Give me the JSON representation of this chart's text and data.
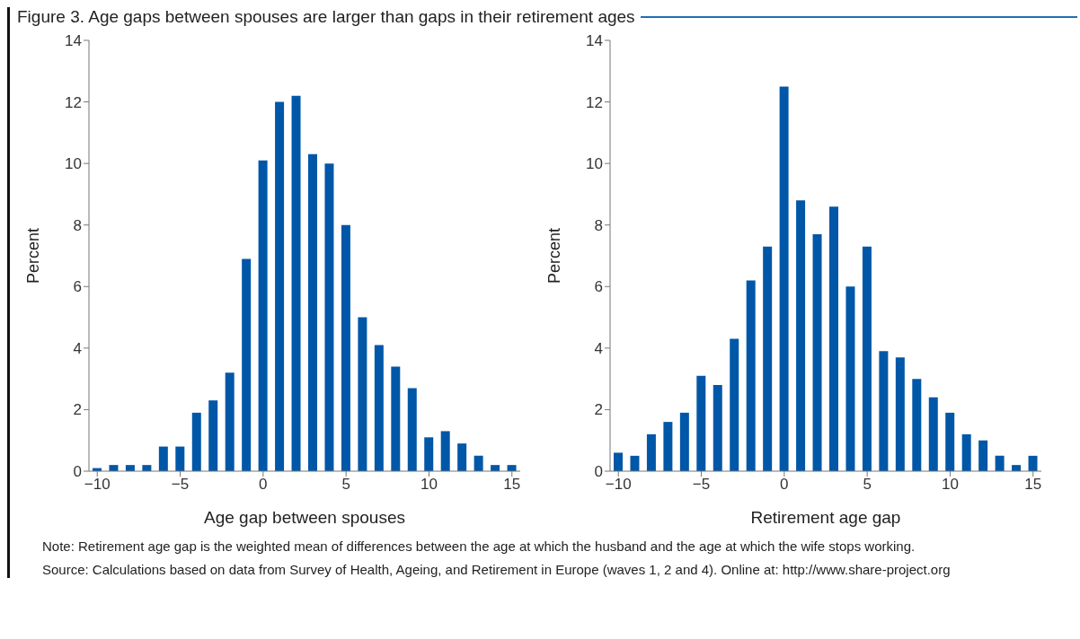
{
  "chart_data": [
    {
      "type": "bar",
      "title": "Figure 3. Age gaps between spouses are larger than gaps in their retirement ages",
      "xlabel": "Age gap between spouses",
      "ylabel": "Percent",
      "x": [
        -10,
        -9,
        -8,
        -7,
        -6,
        -5,
        -4,
        -3,
        -2,
        -1,
        0,
        1,
        2,
        3,
        4,
        5,
        6,
        7,
        8,
        9,
        10,
        11,
        12,
        13,
        14,
        15
      ],
      "values": [
        0.1,
        0.2,
        0.2,
        0.2,
        0.8,
        0.8,
        1.9,
        2.3,
        3.2,
        6.9,
        10.1,
        12.0,
        12.2,
        10.3,
        10.0,
        8.0,
        5.0,
        4.1,
        3.4,
        2.7,
        1.1,
        1.3,
        0.9,
        0.5,
        0.2,
        0.2
      ],
      "color": "#0057a8",
      "xlim": [
        -10.5,
        15.5
      ],
      "xticks": [
        -10,
        -5,
        0,
        5,
        10,
        15
      ],
      "ylim": [
        0,
        14
      ],
      "yticks": [
        0,
        2,
        4,
        6,
        8,
        10,
        12,
        14
      ]
    },
    {
      "type": "bar",
      "xlabel": "Retirement age gap",
      "ylabel": "Percent",
      "x": [
        -10,
        -9,
        -8,
        -7,
        -6,
        -5,
        -4,
        -3,
        -2,
        -1,
        0,
        1,
        2,
        3,
        4,
        5,
        6,
        7,
        8,
        9,
        10,
        11,
        12,
        13,
        14,
        15
      ],
      "values": [
        0.6,
        0.5,
        1.2,
        1.6,
        1.9,
        3.1,
        2.8,
        4.3,
        6.2,
        7.3,
        12.5,
        8.8,
        7.7,
        8.6,
        6.0,
        7.3,
        3.9,
        3.7,
        3.0,
        2.4,
        1.9,
        1.2,
        1.0,
        0.5,
        0.2,
        0.5
      ],
      "color": "#0057a8",
      "xlim": [
        -10.5,
        15.5
      ],
      "xticks": [
        -10,
        -5,
        0,
        5,
        10,
        15
      ],
      "ylim": [
        0,
        14
      ],
      "yticks": [
        0,
        2,
        4,
        6,
        8,
        10,
        12,
        14
      ],
      "annotations": [
        "Note: Retirement age gap is the weighted mean of differences between the age at which the husband and the age at which the wife stops working.",
        "Source: Calculations based on data from Survey of Health, Ageing, and Retirement in Europe (waves 1, 2 and 4). Online at: http://www.share-project.org"
      ]
    }
  ]
}
